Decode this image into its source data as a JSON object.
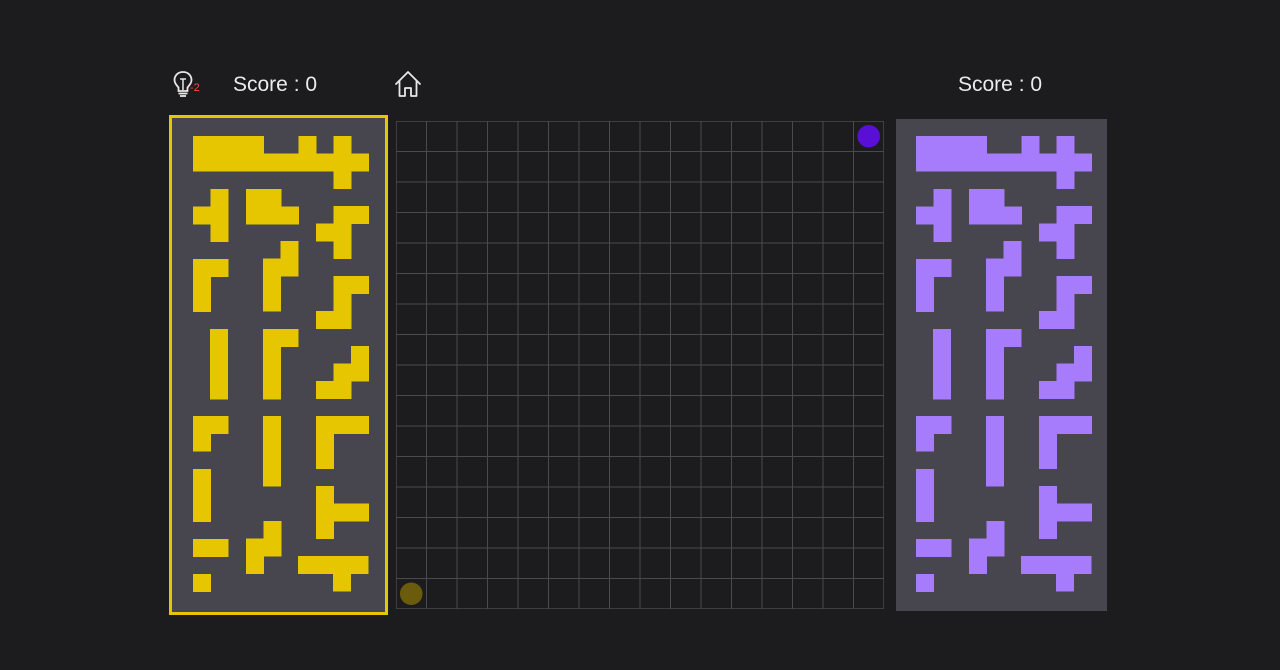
{
  "players": {
    "left": {
      "score_label": "Score : 0",
      "color": "#e5c600",
      "start_corner": "bottom-left",
      "active": true
    },
    "right": {
      "score_label": "Score : 0",
      "color": "#a67cfc",
      "start_corner": "top-right",
      "active": false
    }
  },
  "hint": {
    "icon": "lightbulb-icon",
    "count_label": "-2",
    "count_color": "#ff4747"
  },
  "home": {
    "icon": "home-icon"
  },
  "board": {
    "rows": 16,
    "cols": 16,
    "background": "#1c1c1e",
    "grid_color": "#4a4a4a",
    "markers": [
      {
        "player": "left",
        "row": 15,
        "col": 0,
        "color": "#6a5c0c"
      },
      {
        "player": "right",
        "row": 0,
        "col": 15,
        "color": "#5a0fd6"
      }
    ]
  },
  "pieces": [
    [
      "####",
      "####"
    ],
    [
      "#..#",
      "####"
    ],
    [
      ".#.",
      "###",
      ".#."
    ],
    [
      ".#",
      "##",
      ".#"
    ],
    [
      "##.",
      "###"
    ],
    [
      ".##",
      "##.",
      ".#."
    ],
    [
      "##",
      "#.",
      "#."
    ],
    [
      ".#",
      "##",
      "#.",
      "#."
    ],
    [
      ".##",
      ".#.",
      "##."
    ],
    [
      "#",
      "#",
      "#",
      "#"
    ],
    [
      "##",
      "#.",
      "#.",
      "#."
    ],
    [
      "..#",
      ".##",
      "##."
    ],
    [
      "##",
      "#."
    ],
    [
      "#",
      "#",
      "#",
      "#"
    ],
    [
      "###",
      "#..",
      "#.."
    ],
    [
      "#",
      "#",
      "#"
    ],
    [
      "#..",
      "###",
      "#.."
    ],
    [
      "##"
    ],
    [
      ".#",
      "##",
      "#."
    ],
    [
      "####",
      "..#."
    ],
    [
      "#"
    ]
  ]
}
